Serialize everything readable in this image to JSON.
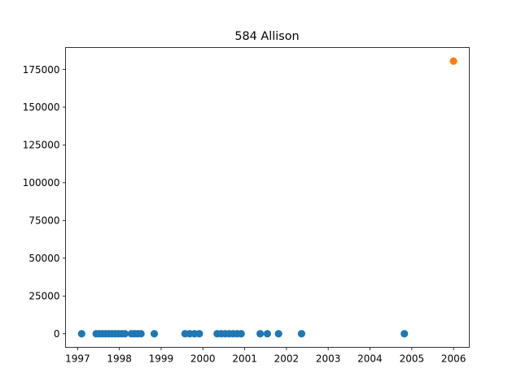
{
  "chart_data": {
    "type": "scatter",
    "title": "584 Allison",
    "xlabel": "",
    "ylabel": "",
    "xlim": [
      "1996-09-17",
      "2006-05-19"
    ],
    "ylim": [
      -9000,
      189500
    ],
    "grid": false,
    "x_ticks": [
      "1997",
      "1998",
      "1999",
      "2000",
      "2001",
      "2002",
      "2003",
      "2004",
      "2005",
      "2006"
    ],
    "y_ticks": [
      "0",
      "25000",
      "50000",
      "75000",
      "100000",
      "125000",
      "150000",
      "175000"
    ],
    "series": [
      {
        "color": "#1f77b4",
        "points": [
          {
            "x": "1997-02-05",
            "y": 0
          },
          {
            "x": "1997-06-12",
            "y": 0
          },
          {
            "x": "1997-07-10",
            "y": 0
          },
          {
            "x": "1997-08-07",
            "y": 0
          },
          {
            "x": "1997-09-04",
            "y": 0
          },
          {
            "x": "1997-10-02",
            "y": 0
          },
          {
            "x": "1997-10-30",
            "y": 0
          },
          {
            "x": "1997-11-27",
            "y": 0
          },
          {
            "x": "1997-12-25",
            "y": 0
          },
          {
            "x": "1998-01-22",
            "y": 0
          },
          {
            "x": "1998-02-19",
            "y": 0
          },
          {
            "x": "1998-04-16",
            "y": 0
          },
          {
            "x": "1998-05-14",
            "y": 0
          },
          {
            "x": "1998-06-11",
            "y": 0
          },
          {
            "x": "1998-07-09",
            "y": 0
          },
          {
            "x": "1998-11-02",
            "y": 0
          },
          {
            "x": "1999-07-29",
            "y": 0
          },
          {
            "x": "1999-09-08",
            "y": 0
          },
          {
            "x": "1999-10-20",
            "y": 0
          },
          {
            "x": "1999-12-01",
            "y": 0
          },
          {
            "x": "2000-05-05",
            "y": 0
          },
          {
            "x": "2000-06-09",
            "y": 0
          },
          {
            "x": "2000-07-14",
            "y": 0
          },
          {
            "x": "2000-08-18",
            "y": 0
          },
          {
            "x": "2000-09-22",
            "y": 0
          },
          {
            "x": "2000-10-27",
            "y": 0
          },
          {
            "x": "2000-12-01",
            "y": 0
          },
          {
            "x": "2001-05-16",
            "y": 0
          },
          {
            "x": "2001-07-18",
            "y": 0
          },
          {
            "x": "2001-10-24",
            "y": 0
          },
          {
            "x": "2002-05-13",
            "y": 0
          },
          {
            "x": "2004-10-28",
            "y": 0
          }
        ]
      },
      {
        "color": "#ff7f0e",
        "points": [
          {
            "x": "2006-01-01",
            "y": 180500
          }
        ]
      }
    ]
  }
}
